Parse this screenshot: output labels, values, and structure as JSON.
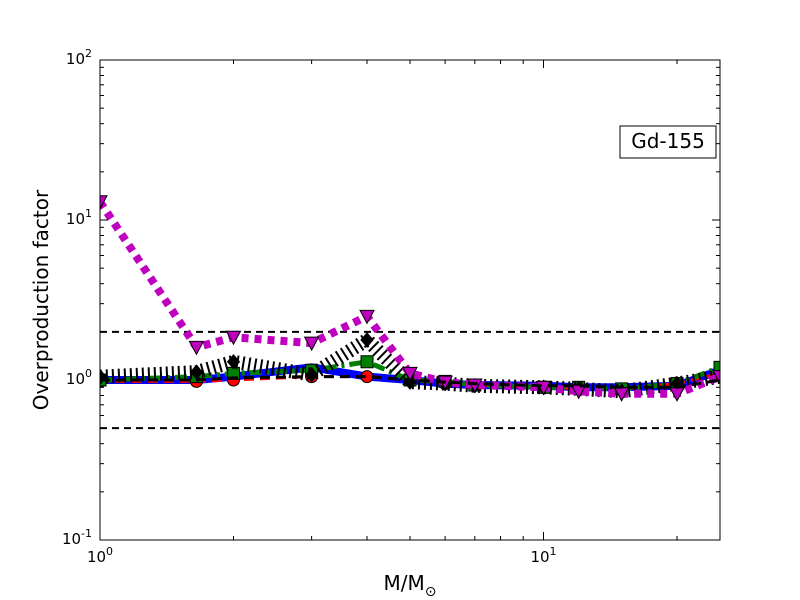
{
  "chart_data": {
    "type": "line",
    "annotation": "Gd-155",
    "xlabel_main": "M/M",
    "xlabel_sub": "⊙",
    "ylabel": "Overproduction factor",
    "xscale": "log",
    "yscale": "log",
    "xlim": [
      1,
      25
    ],
    "ylim": [
      0.1,
      100
    ],
    "grid": false,
    "x_ticks": [
      {
        "value": 1,
        "base": "10",
        "exp": "0"
      },
      {
        "value": 10,
        "base": "10",
        "exp": "1"
      }
    ],
    "y_ticks": [
      {
        "value": 0.1,
        "base": "10",
        "exp": "-1"
      },
      {
        "value": 1,
        "base": "10",
        "exp": "0"
      },
      {
        "value": 10,
        "base": "10",
        "exp": "1"
      },
      {
        "value": 100,
        "base": "10",
        "exp": "2"
      }
    ],
    "reference_lines": [
      2.0,
      0.5
    ],
    "series": [
      {
        "color": "#0000ff",
        "style": "solid",
        "marker": "none",
        "x": [
          1,
          1.65,
          2,
          3,
          4,
          5,
          6,
          7,
          10,
          12,
          15,
          20,
          25
        ],
        "y": [
          1.0,
          1.0,
          1.05,
          1.2,
          1.05,
          1.0,
          0.95,
          0.93,
          0.92,
          0.9,
          0.9,
          0.92,
          1.15
        ]
      },
      {
        "color": "#ff0000",
        "style": "dashed",
        "marker": "circle",
        "x": [
          1,
          1.65,
          2,
          3,
          4,
          5,
          6,
          7,
          10,
          12,
          15,
          20,
          25
        ],
        "y": [
          0.98,
          0.98,
          1.0,
          1.05,
          1.05,
          1.0,
          0.95,
          0.93,
          0.9,
          0.88,
          0.88,
          0.95,
          1.1
        ]
      },
      {
        "color": "#008000",
        "style": "dashdot",
        "marker": "square",
        "x": [
          1,
          1.65,
          2,
          3,
          4,
          5,
          6,
          7,
          10,
          12,
          15,
          20,
          25
        ],
        "y": [
          1.0,
          1.05,
          1.1,
          1.15,
          1.3,
          1.0,
          0.98,
          0.93,
          0.9,
          0.9,
          0.88,
          0.95,
          1.2
        ]
      },
      {
        "color": "#000000",
        "style": "hatched",
        "marker": "diamond",
        "x": [
          1,
          1.65,
          2,
          3,
          4,
          5,
          6,
          7,
          10,
          12,
          15,
          20,
          25
        ],
        "y": [
          1.05,
          1.12,
          1.3,
          1.08,
          1.78,
          0.97,
          0.95,
          0.92,
          0.9,
          0.88,
          0.85,
          0.95,
          1.05
        ]
      },
      {
        "color": "#bf00bf",
        "style": "dotted",
        "marker": "triangle-down",
        "x": [
          1,
          1.65,
          2,
          3,
          4,
          5,
          6,
          7,
          10,
          12,
          15,
          20,
          25
        ],
        "y": [
          13,
          1.6,
          1.85,
          1.7,
          2.5,
          1.1,
          0.97,
          0.93,
          0.9,
          0.85,
          0.82,
          0.82,
          1.05
        ]
      },
      {
        "color": "#000000",
        "style": "dashed",
        "marker": "none",
        "x": [
          1,
          1.65,
          2,
          3,
          4,
          5,
          6,
          7,
          10,
          12,
          15,
          20,
          25
        ],
        "y": [
          1.0,
          1.0,
          1.03,
          1.05,
          1.05,
          1.0,
          0.97,
          0.95,
          0.92,
          0.92,
          0.9,
          0.9,
          1.0
        ]
      }
    ]
  }
}
